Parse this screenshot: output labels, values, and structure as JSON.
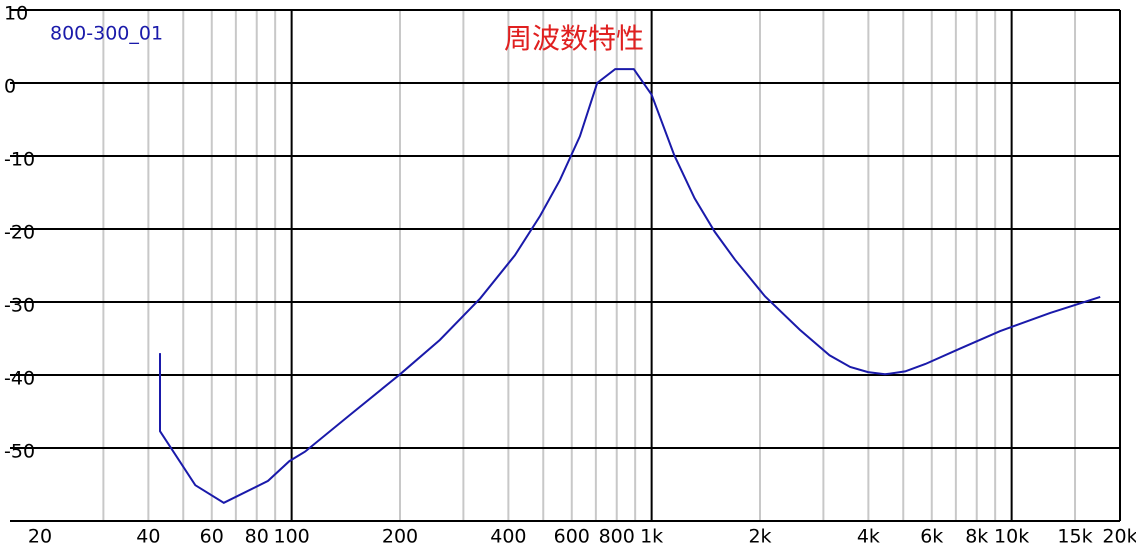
{
  "chart_data": {
    "type": "line",
    "title": "周波数特性",
    "title_color": "#e02020",
    "x_scale": "log",
    "xlim": [
      20,
      20000
    ],
    "ylim": [
      -60,
      10
    ],
    "xticks": [
      20,
      40,
      60,
      80,
      100,
      200,
      400,
      600,
      800,
      {
        "value": 1000,
        "label": "1k"
      },
      {
        "value": 2000,
        "label": "2k"
      },
      {
        "value": 4000,
        "label": "4k"
      },
      {
        "value": 6000,
        "label": "6k"
      },
      {
        "value": 8000,
        "label": "8k"
      },
      {
        "value": 10000,
        "label": "10k"
      },
      {
        "value": 15000,
        "label": "15k"
      },
      {
        "value": 20000,
        "label": "20k"
      }
    ],
    "x_minor_grid": [
      30,
      50,
      70,
      90,
      300,
      500,
      700,
      900,
      3000,
      5000,
      7000,
      9000
    ],
    "yticks": [
      -50,
      -40,
      -30,
      -20,
      -10,
      0,
      10
    ],
    "grid": true,
    "legend": "top-left",
    "series": [
      {
        "name": "800-300_01",
        "color": "#1a1aaa",
        "x": [
          43.1,
          43.1,
          54,
          64.8,
          86,
          98.6,
          109,
          145,
          200,
          258,
          334,
          417,
          490,
          556,
          632,
          706,
          792,
          892,
          1000,
          1156,
          1316,
          1498,
          1704,
          2064,
          2580,
          3120,
          3560,
          3990,
          4450,
          5060,
          5760,
          7180,
          9280,
          12800,
          17620
        ],
        "values": [
          -37.0,
          -47.7,
          -55.1,
          -57.5,
          -54.5,
          -51.8,
          -50.5,
          -45.5,
          -39.9,
          -35.2,
          -29.5,
          -23.6,
          -18.2,
          -13.3,
          -7.3,
          0,
          1.9,
          1.9,
          -1.6,
          -9.9,
          -15.8,
          -20.4,
          -24.2,
          -29.2,
          -33.8,
          -37.3,
          -38.9,
          -39.6,
          -39.9,
          -39.5,
          -38.5,
          -36.4,
          -34.0,
          -31.5,
          -29.3
        ]
      }
    ]
  }
}
